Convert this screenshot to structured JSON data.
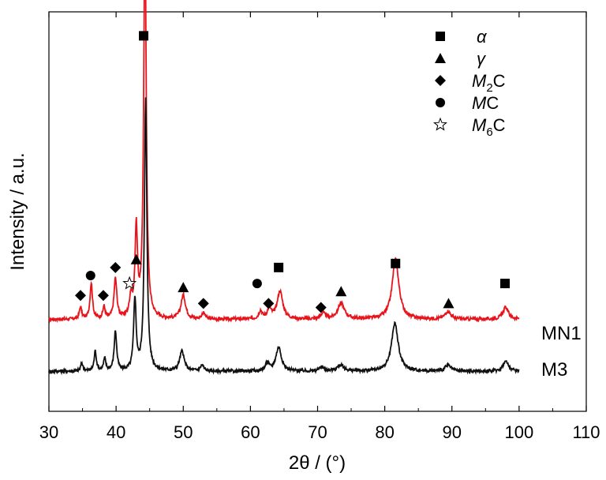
{
  "chart_data": {
    "type": "line",
    "xlabel": "2θ / (°)",
    "ylabel": "Intensity / a.u.",
    "xlim": [
      30,
      110
    ],
    "x_ticks": [
      "30",
      "40",
      "50",
      "60",
      "70",
      "80",
      "90",
      "100",
      "110"
    ],
    "y_ticks_shown": false,
    "grid": false,
    "legend_position": "top-right",
    "legend": [
      {
        "symbol": "square",
        "label": "α"
      },
      {
        "symbol": "triangle",
        "label": "γ"
      },
      {
        "symbol": "diamond",
        "label": "M2C"
      },
      {
        "symbol": "circle",
        "label": "MC"
      },
      {
        "symbol": "star",
        "label": "M6C"
      }
    ],
    "series": [
      {
        "name": "MN1",
        "color": "#e8141b",
        "baseline": 0.23,
        "peaks": [
          {
            "x": 34.7,
            "h": 0.03,
            "w": 0.2
          },
          {
            "x": 36.3,
            "h": 0.09,
            "w": 0.22
          },
          {
            "x": 38.2,
            "h": 0.03,
            "w": 0.2
          },
          {
            "x": 39.9,
            "h": 0.1,
            "w": 0.25
          },
          {
            "x": 42.2,
            "h": 0.05,
            "w": 0.25
          },
          {
            "x": 43.0,
            "h": 0.22,
            "w": 0.22
          },
          {
            "x": 44.3,
            "h": 1.0,
            "w": 0.22
          },
          {
            "x": 50.0,
            "h": 0.06,
            "w": 0.4
          },
          {
            "x": 53.0,
            "h": 0.015,
            "w": 0.3
          },
          {
            "x": 61.5,
            "h": 0.02,
            "w": 0.3
          },
          {
            "x": 62.8,
            "h": 0.025,
            "w": 0.35
          },
          {
            "x": 64.4,
            "h": 0.07,
            "w": 0.5
          },
          {
            "x": 70.8,
            "h": 0.015,
            "w": 0.4
          },
          {
            "x": 73.5,
            "h": 0.04,
            "w": 0.6
          },
          {
            "x": 81.6,
            "h": 0.15,
            "w": 0.6
          },
          {
            "x": 89.4,
            "h": 0.02,
            "w": 0.5
          },
          {
            "x": 98.0,
            "h": 0.03,
            "w": 0.5
          }
        ]
      },
      {
        "name": "M3",
        "color": "#111111",
        "baseline": 0.1,
        "peaks": [
          {
            "x": 34.9,
            "h": 0.02,
            "w": 0.2
          },
          {
            "x": 36.9,
            "h": 0.05,
            "w": 0.2
          },
          {
            "x": 38.3,
            "h": 0.03,
            "w": 0.2
          },
          {
            "x": 39.9,
            "h": 0.1,
            "w": 0.22
          },
          {
            "x": 42.8,
            "h": 0.18,
            "w": 0.22
          },
          {
            "x": 44.4,
            "h": 0.68,
            "w": 0.22
          },
          {
            "x": 49.8,
            "h": 0.05,
            "w": 0.4
          },
          {
            "x": 52.8,
            "h": 0.015,
            "w": 0.3
          },
          {
            "x": 62.5,
            "h": 0.02,
            "w": 0.3
          },
          {
            "x": 64.2,
            "h": 0.06,
            "w": 0.5
          },
          {
            "x": 70.6,
            "h": 0.01,
            "w": 0.4
          },
          {
            "x": 73.4,
            "h": 0.015,
            "w": 0.6
          },
          {
            "x": 81.5,
            "h": 0.12,
            "w": 0.6
          },
          {
            "x": 89.4,
            "h": 0.015,
            "w": 0.5
          },
          {
            "x": 98.0,
            "h": 0.025,
            "w": 0.5
          }
        ]
      }
    ],
    "markers": [
      {
        "symbol": "square",
        "x": 44.1,
        "y": 0.94
      },
      {
        "symbol": "triangle",
        "x": 43.0,
        "y": 0.38
      },
      {
        "symbol": "diamond",
        "x": 34.7,
        "y": 0.29
      },
      {
        "symbol": "circle",
        "x": 36.2,
        "y": 0.34
      },
      {
        "symbol": "diamond",
        "x": 38.1,
        "y": 0.29
      },
      {
        "symbol": "diamond",
        "x": 39.9,
        "y": 0.36
      },
      {
        "symbol": "star",
        "x": 42.0,
        "y": 0.32
      },
      {
        "symbol": "triangle",
        "x": 50.0,
        "y": 0.31
      },
      {
        "symbol": "diamond",
        "x": 53.0,
        "y": 0.27
      },
      {
        "symbol": "circle",
        "x": 61.0,
        "y": 0.32
      },
      {
        "symbol": "diamond",
        "x": 62.7,
        "y": 0.27
      },
      {
        "symbol": "square",
        "x": 64.2,
        "y": 0.36
      },
      {
        "symbol": "diamond",
        "x": 70.5,
        "y": 0.26
      },
      {
        "symbol": "triangle",
        "x": 73.5,
        "y": 0.3
      },
      {
        "symbol": "square",
        "x": 81.6,
        "y": 0.37
      },
      {
        "symbol": "triangle",
        "x": 89.5,
        "y": 0.27
      },
      {
        "symbol": "square",
        "x": 97.9,
        "y": 0.32
      }
    ]
  }
}
